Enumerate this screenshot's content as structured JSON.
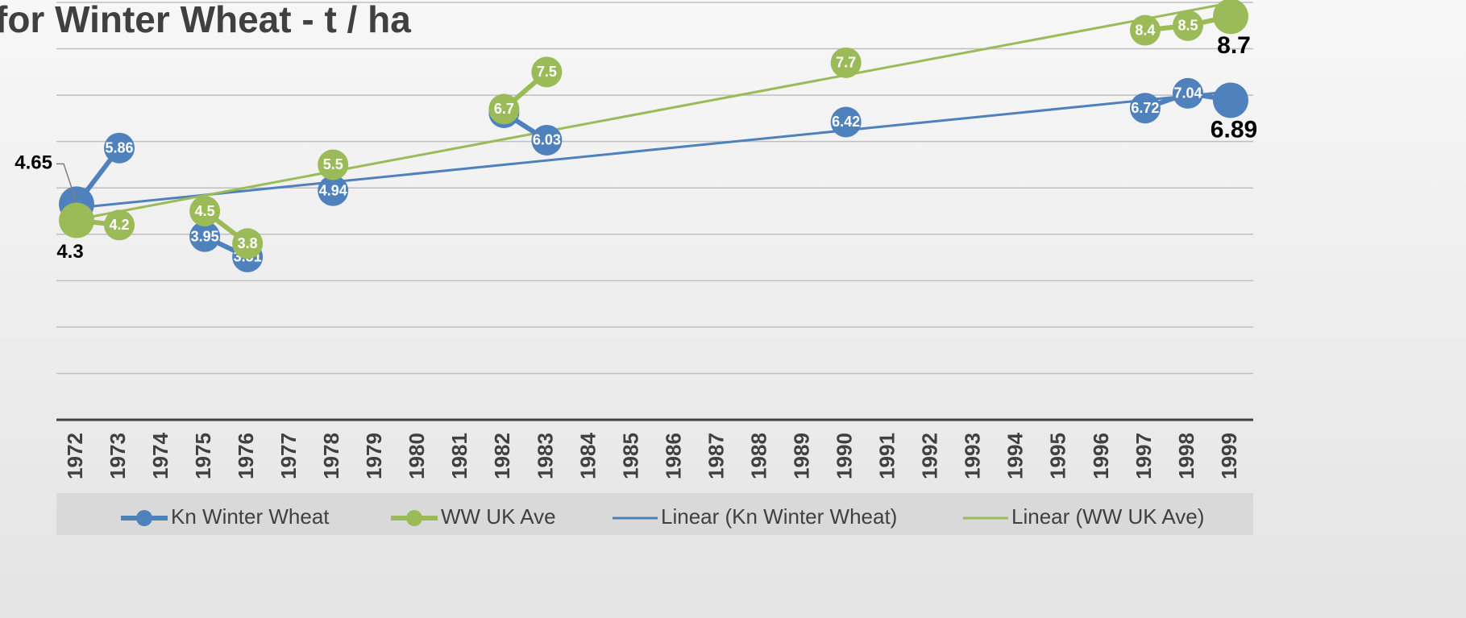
{
  "chart_data": {
    "type": "line",
    "title": "for Winter Wheat - t / ha",
    "categories": [
      "1972",
      "1973",
      "1974",
      "1975",
      "1976",
      "1977",
      "1978",
      "1979",
      "1980",
      "1981",
      "1982",
      "1983",
      "1984",
      "1985",
      "1986",
      "1987",
      "1988",
      "1989",
      "1990",
      "1991",
      "1992",
      "1993",
      "1994",
      "1995",
      "1996",
      "1997",
      "1998",
      "1999"
    ],
    "series": [
      {
        "name": "Kn Winter Wheat",
        "color": "#4f81bd",
        "values": [
          4.65,
          5.86,
          null,
          3.95,
          3.51,
          null,
          4.94,
          null,
          null,
          null,
          6.62,
          6.03,
          null,
          null,
          null,
          null,
          null,
          null,
          6.42,
          null,
          null,
          null,
          null,
          null,
          null,
          6.72,
          7.04,
          6.89
        ]
      },
      {
        "name": "WW UK Ave",
        "color": "#9bbb59",
        "values": [
          4.3,
          4.2,
          null,
          4.5,
          3.8,
          null,
          5.5,
          null,
          null,
          null,
          6.7,
          7.5,
          null,
          null,
          null,
          null,
          null,
          null,
          7.7,
          null,
          null,
          null,
          null,
          null,
          null,
          8.4,
          8.5,
          8.7
        ]
      }
    ],
    "trendlines": [
      {
        "name": "Linear (Kn Winter Wheat)",
        "color": "#4f81bd",
        "categories": [
          "1972",
          "1999"
        ],
        "values": [
          4.57,
          7.08
        ]
      },
      {
        "name": "Linear (WW UK Ave)",
        "color": "#9bbb59",
        "categories": [
          "1972",
          "1999"
        ],
        "values": [
          4.32,
          8.99
        ]
      }
    ],
    "ylim": [
      0,
      9
    ],
    "yticks": [
      0,
      1,
      2,
      3,
      4,
      5,
      6,
      7,
      8,
      9
    ],
    "grid": true,
    "show_ytick_labels": false,
    "legend": "bottom"
  }
}
